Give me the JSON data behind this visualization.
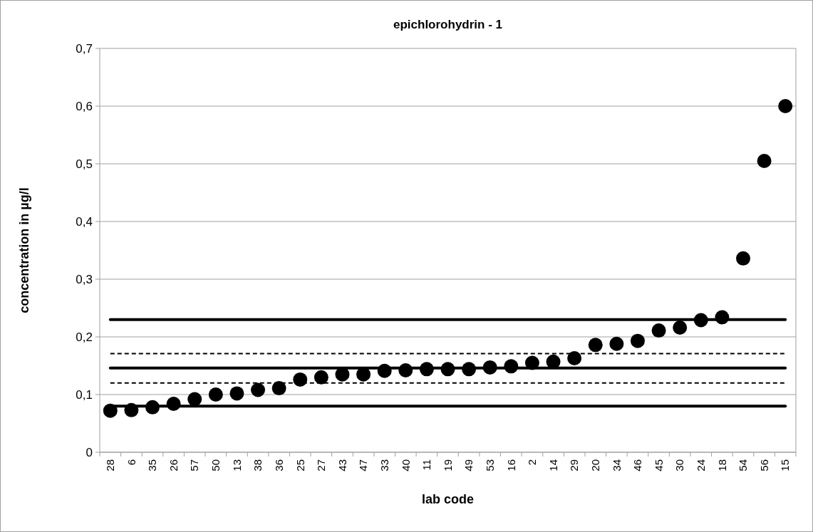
{
  "chart_data": {
    "type": "scatter",
    "title": "epichlorohydrin - 1",
    "xlabel": "lab code",
    "ylabel": "concentration in µg/l",
    "categories": [
      "28",
      "6",
      "35",
      "26",
      "57",
      "50",
      "13",
      "38",
      "36",
      "25",
      "27",
      "43",
      "47",
      "33",
      "40",
      "11",
      "19",
      "49",
      "53",
      "16",
      "2",
      "14",
      "29",
      "20",
      "34",
      "46",
      "45",
      "30",
      "24",
      "18",
      "54",
      "56",
      "15"
    ],
    "series": [
      {
        "color": "#000000",
        "values": [
          0.072,
          0.073,
          0.078,
          0.084,
          0.092,
          0.1,
          0.102,
          0.108,
          0.111,
          0.126,
          0.13,
          0.135,
          0.135,
          0.141,
          0.142,
          0.144,
          0.144,
          0.144,
          0.147,
          0.149,
          0.155,
          0.157,
          0.163,
          0.186,
          0.188,
          0.193,
          0.211,
          0.216,
          0.229,
          0.234,
          0.336,
          0.505,
          0.6
        ]
      }
    ],
    "marker": "circle",
    "ylim": [
      0,
      0.7
    ],
    "yticks": [
      0,
      {
        "value": 0.1,
        "label": "0,1"
      },
      {
        "value": 0.2,
        "label": "0,2"
      },
      {
        "value": 0.3,
        "label": "0,3"
      },
      {
        "value": 0.4,
        "label": "0,4"
      },
      {
        "value": 0.5,
        "label": "0,5"
      },
      {
        "value": 0.6,
        "label": "0,6"
      },
      {
        "value": 0.7,
        "label": "0,7"
      }
    ],
    "grid": "y",
    "ref_lines": [
      {
        "axis": "y",
        "value": 0.08,
        "color": "#000000",
        "line_style": "solid"
      },
      {
        "axis": "y",
        "value": 0.12,
        "color": "#000000",
        "line_style": "dashed"
      },
      {
        "axis": "y",
        "value": 0.146,
        "color": "#000000",
        "line_style": "solid"
      },
      {
        "axis": "y",
        "value": 0.171,
        "color": "#000000",
        "line_style": "dashed"
      },
      {
        "axis": "y",
        "value": 0.23,
        "color": "#000000",
        "line_style": "solid"
      }
    ]
  }
}
